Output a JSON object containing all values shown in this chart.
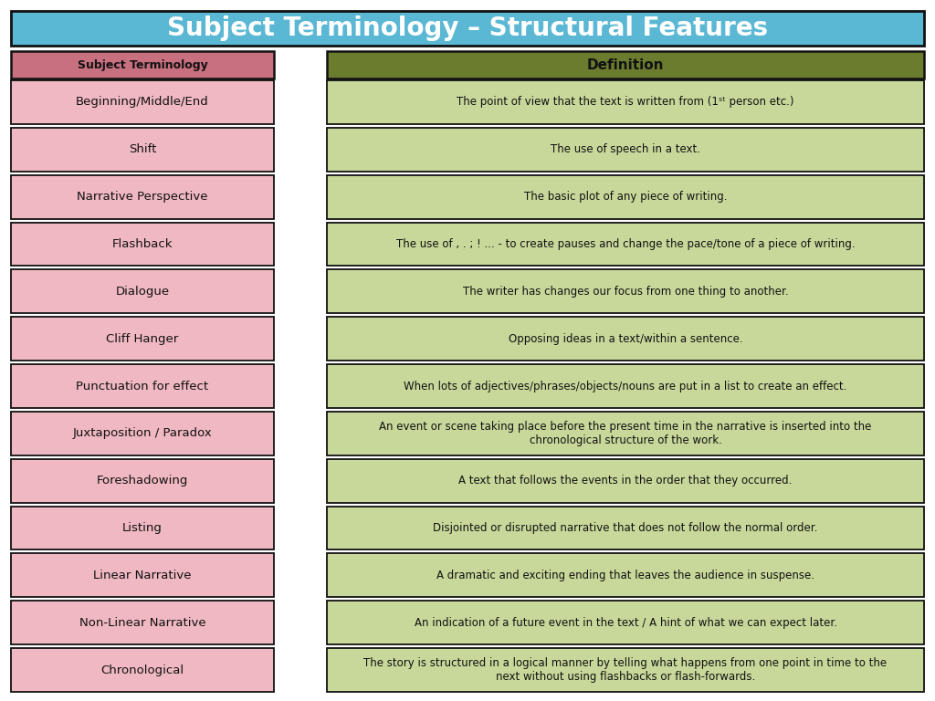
{
  "title": "Subject Terminology – Structural Features",
  "title_bg": "#5BB8D4",
  "title_color": "#FFFFFF",
  "header_term": "Subject Terminology",
  "header_def": "Definition",
  "header_term_bg": "#C87080",
  "header_def_bg": "#6B7C2F",
  "header_text_color": "#111111",
  "term_bg": "#F0B8C2",
  "def_bg": "#C8D89A",
  "border_color": "#111111",
  "text_color": "#111111",
  "bg_color": "#FFFFFF",
  "terms": [
    "Beginning/Middle/End",
    "Shift",
    "Narrative Perspective",
    "Flashback",
    "Dialogue",
    "Cliff Hanger",
    "Punctuation for effect",
    "Juxtaposition / Paradox",
    "Foreshadowing",
    "Listing",
    "Linear Narrative",
    "Non-Linear Narrative",
    "Chronological"
  ],
  "definitions": [
    "The point of view that the text is written from (1ˢᵗ person etc.)",
    "The use of speech in a text.",
    "The basic plot of any piece of writing.",
    "The use of , . ; ! ... - to create pauses and change the pace/tone of a piece of writing.",
    "The writer has changes our focus from one thing to another.",
    "Opposing ideas in a text/within a sentence.",
    "When lots of adjectives/phrases/objects/nouns are put in a list to create an effect.",
    "An event or scene taking place before the present time in the narrative is inserted into the\nchronological structure of the work.",
    "A text that follows the events in the order that they occurred.",
    "Disjointed or disrupted narrative that does not follow the normal order.",
    "A dramatic and exciting ending that leaves the audience in suspense.",
    "An indication of a future event in the text / A hint of what we can expect later.",
    "The story is structured in a logical manner by telling what happens from one point in time to the\nnext without using flashbacks or flash-forwards."
  ]
}
